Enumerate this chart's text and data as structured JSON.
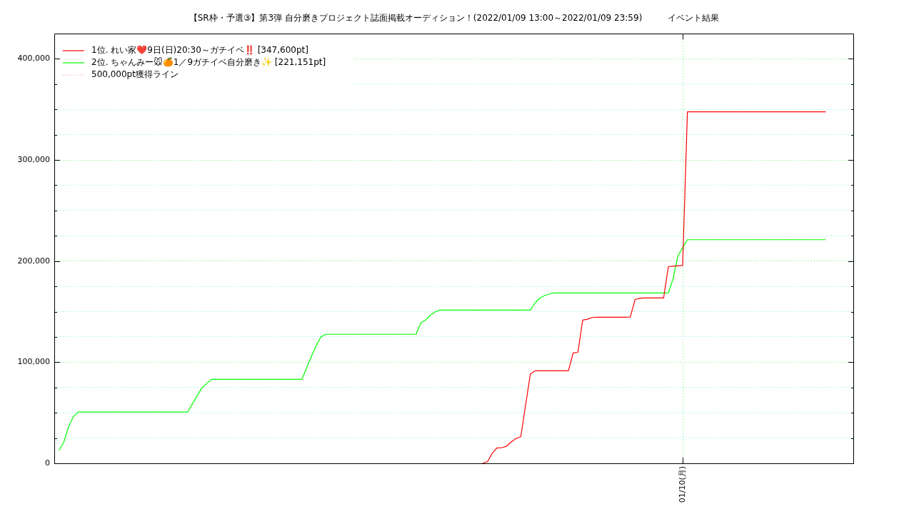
{
  "chart_data": {
    "type": "line",
    "title": "【SR枠・予選③】第3弾 自分磨きプロジェクト誌面掲載オーディション！(2022/01/09 13:00～2022/01/09 23:59)　　　イベント結果",
    "categories": [
      null,
      null,
      null,
      null,
      null,
      null,
      null,
      null,
      null,
      null,
      null,
      null,
      null,
      null,
      null,
      null,
      null,
      null,
      null,
      null,
      null,
      null,
      null,
      null,
      null,
      null,
      null,
      null,
      null,
      null,
      null,
      null,
      null,
      null,
      null,
      null,
      null,
      null,
      null,
      null,
      null,
      null,
      null,
      null,
      null,
      null,
      null,
      null,
      null,
      null,
      null,
      null,
      null,
      null,
      null,
      null,
      null,
      null,
      null,
      null,
      null,
      null,
      null,
      null,
      null,
      null,
      null,
      null,
      null,
      null,
      null,
      null,
      null,
      null,
      null,
      null,
      null,
      null,
      null,
      null,
      null,
      null,
      null,
      null,
      null,
      null,
      null,
      null,
      null,
      null,
      null,
      null,
      null,
      null,
      null,
      null,
      null,
      null,
      null,
      null,
      null,
      null,
      null,
      null,
      null,
      null,
      null,
      null,
      null,
      null,
      null,
      null,
      null,
      null,
      null,
      null,
      null,
      null,
      null,
      null,
      null,
      null,
      null,
      null,
      null,
      null,
      null,
      null,
      null,
      null,
      null,
      null,
      "01/10(月)",
      null,
      null,
      null,
      null,
      null,
      null,
      null,
      null,
      null,
      null,
      null,
      null,
      null,
      null,
      null,
      null,
      null,
      null,
      null,
      null,
      null,
      null,
      null,
      null,
      null,
      null,
      null,
      null,
      null,
      null,
      null,
      null,
      null,
      null,
      null,
      null
    ],
    "ylim": [
      0,
      425000
    ],
    "yticks": [
      {
        "value": 0,
        "label": "0"
      },
      {
        "value": 25000,
        "label": null
      },
      {
        "value": 50000,
        "label": null
      },
      {
        "value": 75000,
        "label": null
      },
      {
        "value": 100000,
        "label": "100,000"
      },
      {
        "value": 125000,
        "label": null
      },
      {
        "value": 150000,
        "label": null
      },
      {
        "value": 175000,
        "label": null
      },
      {
        "value": 200000,
        "label": "200,000"
      },
      {
        "value": 225000,
        "label": null
      },
      {
        "value": 250000,
        "label": null
      },
      {
        "value": 275000,
        "label": null
      },
      {
        "value": 300000,
        "label": "300,000"
      },
      {
        "value": 325000,
        "label": null
      },
      {
        "value": 350000,
        "label": null
      },
      {
        "value": 375000,
        "label": null
      },
      {
        "value": 400000,
        "label": "400,000"
      }
    ],
    "grid": true,
    "legend": "top left",
    "series": [
      {
        "name": "1位. れい家❤️9日(日)20:30～ガチイベ‼️ [347,600pt]",
        "color": "#ff0000",
        "values": [
          null,
          null,
          null,
          null,
          null,
          null,
          null,
          null,
          null,
          null,
          null,
          null,
          null,
          null,
          null,
          null,
          null,
          null,
          null,
          null,
          null,
          null,
          null,
          null,
          null,
          null,
          null,
          null,
          null,
          null,
          null,
          null,
          null,
          null,
          null,
          null,
          null,
          null,
          null,
          null,
          null,
          null,
          null,
          null,
          null,
          null,
          null,
          null,
          null,
          null,
          null,
          null,
          null,
          null,
          null,
          null,
          null,
          null,
          null,
          null,
          null,
          null,
          null,
          null,
          null,
          null,
          null,
          null,
          null,
          null,
          null,
          null,
          null,
          null,
          null,
          null,
          null,
          null,
          null,
          null,
          null,
          null,
          null,
          null,
          null,
          null,
          null,
          null,
          null,
          null,
          0,
          1600,
          9900,
          15300,
          15500,
          16900,
          21200,
          24500,
          26300,
          57200,
          88200,
          91500,
          91500,
          91500,
          91500,
          91500,
          91500,
          91500,
          91500,
          109100,
          109800,
          141600,
          142500,
          144200,
          144400,
          144400,
          144400,
          144400,
          144400,
          144400,
          144400,
          144600,
          162000,
          163200,
          163500,
          163500,
          163500,
          163500,
          163500,
          194500,
          195000,
          195300,
          195600,
          347600,
          347600,
          347600,
          347600,
          347600,
          347600,
          347600,
          347600,
          347600,
          347600,
          347600,
          347600,
          347600,
          347600,
          347600,
          347600,
          347600,
          347600,
          347600,
          347600,
          347600,
          347600,
          347600,
          347600,
          347600,
          347600,
          347600,
          347600,
          347600,
          347600,
          null,
          null,
          null,
          null,
          null,
          null
        ]
      },
      {
        "name": "2位. ちゃんみー🐭🍊1／9ガチイベ自分磨き✨ [221,151pt]",
        "color": "#00ff00",
        "values": [
          null,
          12900,
          21000,
          36000,
          46000,
          50700,
          50700,
          50700,
          50700,
          50700,
          50700,
          50700,
          50700,
          50700,
          50700,
          50700,
          50700,
          50700,
          50700,
          50700,
          50700,
          50700,
          50700,
          50700,
          50700,
          50700,
          50700,
          50700,
          50700,
          58700,
          66600,
          74600,
          78800,
          83000,
          83000,
          83000,
          83000,
          83000,
          83000,
          83000,
          83000,
          83000,
          83000,
          83000,
          83000,
          83000,
          83000,
          83000,
          83000,
          83000,
          83000,
          83000,
          83000,
          94000,
          105600,
          116200,
          125000,
          127600,
          127600,
          127600,
          127600,
          127600,
          127600,
          127600,
          127600,
          127600,
          127600,
          127600,
          127600,
          127600,
          127600,
          127600,
          127600,
          127600,
          127600,
          127600,
          127600,
          138900,
          141700,
          146500,
          149700,
          151500,
          151500,
          151500,
          151500,
          151500,
          151500,
          151500,
          151500,
          151500,
          151500,
          151500,
          151500,
          151500,
          151500,
          151500,
          151500,
          151500,
          151500,
          151500,
          151500,
          158700,
          163400,
          165900,
          167500,
          168500,
          168500,
          168500,
          168500,
          168500,
          168500,
          168500,
          168500,
          168500,
          168500,
          168500,
          168500,
          168500,
          168500,
          168500,
          168500,
          168500,
          168500,
          168500,
          168500,
          168500,
          168500,
          168500,
          168500,
          168500,
          182700,
          205100,
          213300,
          221151,
          221151,
          221151,
          221151,
          221151,
          221151,
          221151,
          221151,
          221151,
          221151,
          221151,
          221151,
          221151,
          221151,
          221151,
          221151,
          221151,
          221151,
          221151,
          221151,
          221151,
          221151,
          221151,
          221151,
          221151,
          221151,
          221151,
          221151,
          221151,
          221151,
          null,
          null,
          null,
          null,
          null,
          null
        ]
      },
      {
        "name": "500,000pt獲得ライン",
        "color": "#ff8080",
        "line_style": "dotted",
        "values": [
          null,
          null,
          null,
          null,
          null,
          null,
          null,
          null,
          null,
          null,
          null,
          null,
          null,
          null,
          null,
          null,
          null,
          null,
          null,
          null,
          null,
          null,
          null,
          null,
          null,
          null,
          null,
          null,
          null,
          null,
          null,
          null,
          null,
          null,
          null,
          null,
          null,
          null,
          null,
          null,
          null,
          null,
          null,
          null,
          null,
          null,
          null,
          null,
          null,
          null,
          null,
          null,
          null,
          null,
          null,
          null,
          null,
          null,
          null,
          null,
          null,
          null,
          null,
          null,
          null,
          null,
          null,
          null,
          null,
          null,
          null,
          null,
          null,
          null,
          null,
          null,
          null,
          null,
          null,
          null,
          null,
          null,
          null,
          null,
          null,
          null,
          null,
          null,
          null,
          null,
          null,
          null,
          null,
          null,
          null,
          null,
          null,
          null,
          null,
          null,
          null,
          null,
          null,
          null,
          null,
          null,
          null,
          null,
          null,
          null,
          null,
          null,
          null,
          null,
          null,
          null,
          null,
          null,
          null,
          null,
          null,
          null,
          null,
          null,
          null,
          null,
          null,
          null,
          null,
          null,
          null,
          null,
          null,
          null,
          null,
          null,
          null,
          null,
          null,
          null,
          null,
          null,
          null,
          null,
          null,
          null,
          null,
          null,
          null,
          null,
          null,
          null,
          null,
          null,
          null,
          null,
          null,
          null,
          null,
          null,
          null,
          null,
          null,
          null,
          null,
          null,
          null,
          null,
          null
        ]
      }
    ]
  }
}
